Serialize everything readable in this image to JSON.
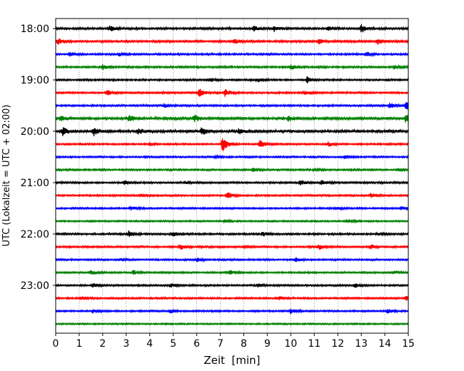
{
  "chart_data": {
    "type": "line",
    "title": "",
    "xlabel": "Zeit  [min]",
    "ylabel": "UTC (Lokalzeit = UTC + 02:00)",
    "xlim": [
      0,
      15
    ],
    "x_ticks": [
      "0",
      "1",
      "2",
      "3",
      "4",
      "5",
      "6",
      "7",
      "8",
      "9",
      "10",
      "11",
      "12",
      "13",
      "14",
      "15"
    ],
    "y_tick_labels": [
      "18:00",
      "19:00",
      "20:00",
      "21:00",
      "22:00",
      "23:00"
    ],
    "grid": "vertical dotted lines at each minute",
    "trace_colors": [
      "#000000",
      "#ff0000",
      "#0000ff",
      "#008000"
    ],
    "traces": [
      {
        "time": "18:00",
        "color": "#000000",
        "activity": 0.35,
        "events": [
          {
            "x": 2.3,
            "a": 0.6
          },
          {
            "x": 8.4,
            "a": 0.8
          },
          {
            "x": 9.3,
            "a": 0.6
          },
          {
            "x": 13.0,
            "a": 1.0
          },
          {
            "x": 11.6,
            "a": 0.5
          }
        ]
      },
      {
        "time": "18:15",
        "color": "#ff0000",
        "activity": 0.35,
        "events": [
          {
            "x": 0.1,
            "a": 0.7
          },
          {
            "x": 7.6,
            "a": 0.5
          },
          {
            "x": 11.2,
            "a": 0.6
          },
          {
            "x": 13.7,
            "a": 0.7
          }
        ]
      },
      {
        "time": "18:30",
        "color": "#0000ff",
        "activity": 0.25,
        "events": [
          {
            "x": 0.6,
            "a": 0.5
          },
          {
            "x": 2.7,
            "a": 0.4
          },
          {
            "x": 13.2,
            "a": 0.5
          }
        ]
      },
      {
        "time": "18:45",
        "color": "#008000",
        "activity": 0.3,
        "events": [
          {
            "x": 2.0,
            "a": 0.6
          },
          {
            "x": 10.0,
            "a": 0.5
          },
          {
            "x": 14.4,
            "a": 0.4
          }
        ]
      },
      {
        "time": "19:00",
        "color": "#000000",
        "activity": 0.25,
        "events": [
          {
            "x": 6.6,
            "a": 0.4
          },
          {
            "x": 10.7,
            "a": 0.8
          },
          {
            "x": 8.6,
            "a": 0.4
          }
        ]
      },
      {
        "time": "19:15",
        "color": "#ff0000",
        "activity": 0.25,
        "events": [
          {
            "x": 2.2,
            "a": 0.6
          },
          {
            "x": 6.1,
            "a": 0.9
          },
          {
            "x": 7.2,
            "a": 0.9
          },
          {
            "x": 10.6,
            "a": 0.4
          }
        ]
      },
      {
        "time": "19:30",
        "color": "#0000ff",
        "activity": 0.25,
        "events": [
          {
            "x": 4.6,
            "a": 0.4
          },
          {
            "x": 14.2,
            "a": 0.6
          },
          {
            "x": 14.9,
            "a": 1.0
          }
        ]
      },
      {
        "time": "19:45",
        "color": "#008000",
        "activity": 0.6,
        "events": [
          {
            "x": 3.1,
            "a": 0.8
          },
          {
            "x": 5.9,
            "a": 0.7
          },
          {
            "x": 9.9,
            "a": 0.6
          },
          {
            "x": 14.9,
            "a": 1.0
          },
          {
            "x": 0.2,
            "a": 0.6
          }
        ]
      },
      {
        "time": "20:00",
        "color": "#000000",
        "activity": 0.6,
        "events": [
          {
            "x": 0.3,
            "a": 0.9
          },
          {
            "x": 1.6,
            "a": 1.0
          },
          {
            "x": 6.2,
            "a": 0.9
          },
          {
            "x": 7.8,
            "a": 0.7
          },
          {
            "x": 3.5,
            "a": 0.6
          }
        ]
      },
      {
        "time": "20:15",
        "color": "#ff0000",
        "activity": 0.2,
        "events": [
          {
            "x": 7.1,
            "a": 1.8
          },
          {
            "x": 8.7,
            "a": 1.0
          },
          {
            "x": 11.6,
            "a": 0.5
          },
          {
            "x": 4.0,
            "a": 0.3
          }
        ]
      },
      {
        "time": "20:30",
        "color": "#0000ff",
        "activity": 0.2,
        "events": [
          {
            "x": 6.8,
            "a": 0.3
          },
          {
            "x": 12.3,
            "a": 0.3
          }
        ]
      },
      {
        "time": "20:45",
        "color": "#008000",
        "activity": 0.25,
        "events": [
          {
            "x": 8.4,
            "a": 0.4
          },
          {
            "x": 14.6,
            "a": 0.3
          },
          {
            "x": 11.0,
            "a": 0.3
          }
        ]
      },
      {
        "time": "21:00",
        "color": "#000000",
        "activity": 0.25,
        "events": [
          {
            "x": 2.9,
            "a": 0.5
          },
          {
            "x": 10.4,
            "a": 0.6
          },
          {
            "x": 11.3,
            "a": 0.5
          },
          {
            "x": 5.5,
            "a": 0.3
          }
        ]
      },
      {
        "time": "21:15",
        "color": "#ff0000",
        "activity": 0.2,
        "events": [
          {
            "x": 7.3,
            "a": 0.8
          },
          {
            "x": 13.4,
            "a": 0.6
          },
          {
            "x": 3.6,
            "a": 0.3
          }
        ]
      },
      {
        "time": "21:30",
        "color": "#0000ff",
        "activity": 0.2,
        "events": [
          {
            "x": 3.2,
            "a": 0.5
          },
          {
            "x": 11.9,
            "a": 0.3
          },
          {
            "x": 14.7,
            "a": 0.3
          }
        ]
      },
      {
        "time": "21:45",
        "color": "#008000",
        "activity": 0.15,
        "events": [
          {
            "x": 12.4,
            "a": 0.3
          },
          {
            "x": 7.2,
            "a": 0.2
          }
        ]
      },
      {
        "time": "22:00",
        "color": "#000000",
        "activity": 0.25,
        "events": [
          {
            "x": 3.1,
            "a": 0.7
          },
          {
            "x": 5.0,
            "a": 0.5
          },
          {
            "x": 8.8,
            "a": 0.5
          },
          {
            "x": 13.7,
            "a": 0.4
          }
        ]
      },
      {
        "time": "22:15",
        "color": "#ff0000",
        "activity": 0.25,
        "events": [
          {
            "x": 5.3,
            "a": 0.6
          },
          {
            "x": 11.2,
            "a": 0.6
          },
          {
            "x": 13.4,
            "a": 0.5
          },
          {
            "x": 8.0,
            "a": 0.3
          }
        ]
      },
      {
        "time": "22:30",
        "color": "#0000ff",
        "activity": 0.2,
        "events": [
          {
            "x": 6.0,
            "a": 0.5
          },
          {
            "x": 10.2,
            "a": 0.5
          },
          {
            "x": 2.7,
            "a": 0.3
          }
        ]
      },
      {
        "time": "22:45",
        "color": "#008000",
        "activity": 0.2,
        "events": [
          {
            "x": 1.5,
            "a": 0.6
          },
          {
            "x": 3.3,
            "a": 0.5
          },
          {
            "x": 7.4,
            "a": 0.5
          },
          {
            "x": 14.4,
            "a": 0.3
          }
        ]
      },
      {
        "time": "23:00",
        "color": "#000000",
        "activity": 0.2,
        "events": [
          {
            "x": 1.6,
            "a": 0.5
          },
          {
            "x": 4.9,
            "a": 0.4
          },
          {
            "x": 12.7,
            "a": 0.6
          },
          {
            "x": 8.6,
            "a": 0.3
          }
        ]
      },
      {
        "time": "23:15",
        "color": "#ff0000",
        "activity": 0.2,
        "events": [
          {
            "x": 1.1,
            "a": 0.4
          },
          {
            "x": 9.5,
            "a": 0.4
          },
          {
            "x": 14.9,
            "a": 0.6
          }
        ]
      },
      {
        "time": "23:30",
        "color": "#0000ff",
        "activity": 0.2,
        "events": [
          {
            "x": 1.6,
            "a": 0.5
          },
          {
            "x": 4.9,
            "a": 0.4
          },
          {
            "x": 10.0,
            "a": 0.6
          },
          {
            "x": 14.1,
            "a": 0.5
          }
        ]
      },
      {
        "time": "23:45",
        "color": "#008000",
        "activity": 0.1,
        "events": []
      }
    ]
  }
}
